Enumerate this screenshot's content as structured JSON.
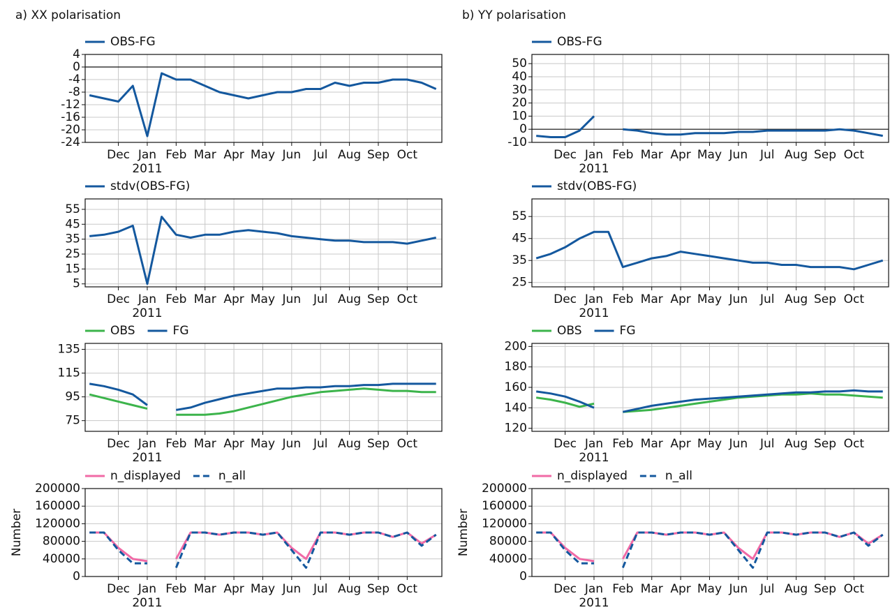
{
  "x_axis": {
    "xlim": [
      -0.15,
      12.2
    ],
    "xticks": [
      {
        "value": 1,
        "label": "Dec"
      },
      {
        "value": 2,
        "label": "Jan"
      },
      {
        "value": 3,
        "label": "Feb"
      },
      {
        "value": 4,
        "label": "Mar"
      },
      {
        "value": 5,
        "label": "Apr"
      },
      {
        "value": 6,
        "label": "May"
      },
      {
        "value": 7,
        "label": "Jun"
      },
      {
        "value": 8,
        "label": "Jul"
      },
      {
        "value": 9,
        "label": "Aug"
      },
      {
        "value": 10,
        "label": "Sep"
      },
      {
        "value": 11,
        "label": "Oct"
      }
    ],
    "year_label": "2011",
    "x": [
      0,
      0.5,
      1,
      1.5,
      2,
      2.5,
      3,
      3.5,
      4,
      4.5,
      5,
      5.5,
      6,
      6.5,
      7,
      7.5,
      8,
      8.5,
      9,
      9.5,
      10,
      10.5,
      11,
      11.5,
      12
    ]
  },
  "chart_data": [
    {
      "type": "line",
      "title": "a) XX polarisation",
      "ylim": [
        -24,
        4
      ],
      "yticks": [
        4,
        0,
        -4,
        -8,
        -12,
        -16,
        -20,
        -24
      ],
      "grid": true,
      "reference_line": 0,
      "series": [
        {
          "name": "OBS-FG",
          "color": "#14589e",
          "values": [
            -9,
            -10,
            -11,
            -6,
            -22,
            -2,
            -4,
            -4,
            -6,
            -8,
            -9,
            -10,
            -9,
            -8,
            -8,
            -7,
            -7,
            -5,
            -6,
            -5,
            -5,
            -4,
            -4,
            -5,
            -7
          ]
        }
      ]
    },
    {
      "type": "line",
      "ylim": [
        3,
        62
      ],
      "yticks": [
        5,
        15,
        25,
        35,
        45,
        55
      ],
      "grid": true,
      "series": [
        {
          "name": "stdv(OBS-FG)",
          "color": "#14589e",
          "values": [
            37,
            38,
            40,
            44,
            5,
            50,
            38,
            36,
            38,
            38,
            40,
            41,
            40,
            39,
            37,
            36,
            35,
            34,
            34,
            33,
            33,
            33,
            32,
            34,
            36
          ]
        }
      ]
    },
    {
      "type": "line",
      "ylim": [
        66,
        140
      ],
      "yticks": [
        75,
        95,
        115,
        135
      ],
      "grid": true,
      "series": [
        {
          "name": "OBS",
          "color": "#3cb44b",
          "values": [
            97,
            94,
            91,
            88,
            85,
            null,
            80,
            80,
            80,
            81,
            83,
            86,
            89,
            92,
            95,
            97,
            99,
            100,
            101,
            102,
            101,
            100,
            100,
            99,
            99
          ]
        },
        {
          "name": "FG",
          "color": "#14589e",
          "values": [
            106,
            104,
            101,
            97,
            88,
            null,
            84,
            86,
            90,
            93,
            96,
            98,
            100,
            102,
            102,
            103,
            103,
            104,
            104,
            105,
            105,
            106,
            106,
            106,
            106
          ]
        }
      ]
    },
    {
      "type": "line",
      "y_label": "Number",
      "ylim": [
        0,
        200000
      ],
      "yticks": [
        0,
        40000,
        80000,
        120000,
        160000,
        200000
      ],
      "grid": true,
      "series": [
        {
          "name": "n_displayed",
          "color": "#f06aa6",
          "values": [
            100000,
            100000,
            65000,
            40000,
            35000,
            null,
            40000,
            100000,
            100000,
            95000,
            100000,
            100000,
            95000,
            100000,
            65000,
            40000,
            100000,
            100000,
            95000,
            100000,
            100000,
            90000,
            100000,
            75000,
            95000
          ]
        },
        {
          "name": "n_all",
          "color": "#14589e",
          "dashed": true,
          "values": [
            100000,
            100000,
            60000,
            30000,
            30000,
            null,
            20000,
            100000,
            100000,
            95000,
            100000,
            100000,
            95000,
            100000,
            60000,
            20000,
            100000,
            100000,
            95000,
            100000,
            100000,
            90000,
            100000,
            70000,
            95000
          ]
        }
      ]
    },
    {
      "type": "line",
      "title": "b) YY polarisation",
      "ylim": [
        -10,
        57
      ],
      "yticks": [
        -10,
        0,
        10,
        20,
        30,
        40,
        50
      ],
      "grid": true,
      "reference_line": 0,
      "series": [
        {
          "name": "OBS-FG",
          "color": "#14589e",
          "values": [
            -5,
            -6,
            -6,
            -1,
            10,
            null,
            0,
            -1,
            -3,
            -4,
            -4,
            -3,
            -3,
            -3,
            -2,
            -2,
            -1,
            -1,
            -1,
            -1,
            -1,
            0,
            -1,
            -3,
            -5
          ]
        }
      ]
    },
    {
      "type": "line",
      "ylim": [
        23,
        63
      ],
      "yticks": [
        25,
        35,
        45,
        55
      ],
      "grid": true,
      "series": [
        {
          "name": "stdv(OBS-FG)",
          "color": "#14589e",
          "values": [
            36,
            38,
            41,
            45,
            48,
            48,
            32,
            34,
            36,
            37,
            39,
            38,
            37,
            36,
            35,
            34,
            34,
            33,
            33,
            32,
            32,
            32,
            31,
            33,
            35
          ]
        }
      ]
    },
    {
      "type": "line",
      "ylim": [
        117,
        203
      ],
      "yticks": [
        120,
        140,
        160,
        180,
        200
      ],
      "grid": true,
      "series": [
        {
          "name": "OBS",
          "color": "#3cb44b",
          "values": [
            150,
            148,
            145,
            141,
            144,
            null,
            136,
            137,
            138,
            140,
            142,
            144,
            146,
            148,
            150,
            151,
            152,
            153,
            153,
            154,
            153,
            153,
            152,
            151,
            150
          ]
        },
        {
          "name": "FG",
          "color": "#14589e",
          "values": [
            156,
            154,
            151,
            146,
            140,
            null,
            136,
            139,
            142,
            144,
            146,
            148,
            149,
            150,
            151,
            152,
            153,
            154,
            155,
            155,
            156,
            156,
            157,
            156,
            156
          ]
        }
      ]
    },
    {
      "type": "line",
      "y_label": "Number",
      "ylim": [
        0,
        200000
      ],
      "yticks": [
        0,
        40000,
        80000,
        120000,
        160000,
        200000
      ],
      "grid": true,
      "series": [
        {
          "name": "n_displayed",
          "color": "#f06aa6",
          "values": [
            100000,
            100000,
            65000,
            40000,
            35000,
            null,
            40000,
            100000,
            100000,
            95000,
            100000,
            100000,
            95000,
            100000,
            65000,
            40000,
            100000,
            100000,
            95000,
            100000,
            100000,
            90000,
            100000,
            75000,
            95000
          ]
        },
        {
          "name": "n_all",
          "color": "#14589e",
          "dashed": true,
          "values": [
            100000,
            100000,
            60000,
            30000,
            30000,
            null,
            20000,
            100000,
            100000,
            95000,
            100000,
            100000,
            95000,
            100000,
            60000,
            20000,
            100000,
            100000,
            95000,
            100000,
            100000,
            90000,
            100000,
            70000,
            95000
          ]
        }
      ]
    }
  ]
}
